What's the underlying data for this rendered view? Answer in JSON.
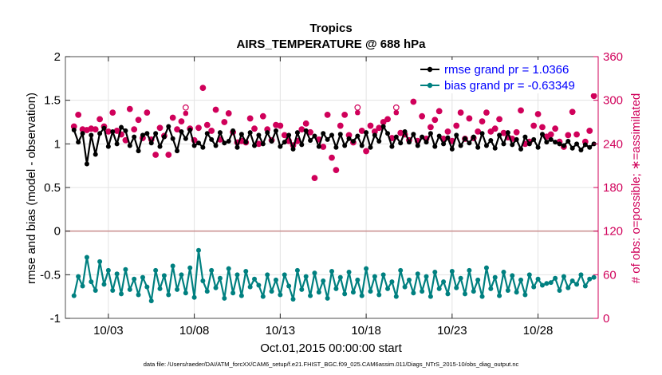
{
  "chart_data": {
    "type": "line",
    "title": "Tropics",
    "subtitle": "AIRS_TEMPERATURE @ 688 hPa",
    "xlabel": "Oct.01,2015 00:00:00 start",
    "ylabel_left": "rmse and bias (model - observation)",
    "ylabel_right": "# of obs: o=possible; ∗=assimilated",
    "footer": "data file: /Users/raeder/DAI/ATM_forcXX/CAM6_setup/f.e21.FHIST_BGC.f09_025.CAM6assim.011/Diags_NTrS_2015-10/obs_diag_output.nc",
    "xlim": [
      0.5,
      31.5
    ],
    "ylim_left": [
      -1,
      2
    ],
    "ylim_right": [
      0,
      360
    ],
    "x_ticks": [
      3,
      8,
      13,
      18,
      23,
      28
    ],
    "x_tick_labels": [
      "10/03",
      "10/08",
      "10/13",
      "10/18",
      "10/23",
      "10/28"
    ],
    "y_ticks_left": [
      -1,
      -0.5,
      0,
      0.5,
      1,
      1.5,
      2
    ],
    "y_tick_labels_left": [
      "-1",
      "-0.5",
      "0",
      "0.5",
      "1",
      "1.5",
      "2"
    ],
    "y_ticks_right": [
      0,
      60,
      120,
      180,
      240,
      300,
      360
    ],
    "y_tick_labels_right": [
      "0",
      "60",
      "120",
      "180",
      "240",
      "300",
      "360"
    ],
    "grid": true,
    "legend_position": "top-right",
    "zero_line": 0,
    "x": [
      1.0,
      1.25,
      1.5,
      1.75,
      2.0,
      2.25,
      2.5,
      2.75,
      3.0,
      3.25,
      3.5,
      3.75,
      4.0,
      4.25,
      4.5,
      4.75,
      5.0,
      5.25,
      5.5,
      5.75,
      6.0,
      6.25,
      6.5,
      6.75,
      7.0,
      7.25,
      7.5,
      7.75,
      8.0,
      8.25,
      8.5,
      8.75,
      9.0,
      9.25,
      9.5,
      9.75,
      10.0,
      10.25,
      10.5,
      10.75,
      11.0,
      11.25,
      11.5,
      11.75,
      12.0,
      12.25,
      12.5,
      12.75,
      13.0,
      13.25,
      13.5,
      13.75,
      14.0,
      14.25,
      14.5,
      14.75,
      15.0,
      15.25,
      15.5,
      15.75,
      16.0,
      16.25,
      16.5,
      16.75,
      17.0,
      17.25,
      17.5,
      17.75,
      18.0,
      18.25,
      18.5,
      18.75,
      19.0,
      19.25,
      19.5,
      19.75,
      20.0,
      20.25,
      20.5,
      20.75,
      21.0,
      21.25,
      21.5,
      21.75,
      22.0,
      22.25,
      22.5,
      22.75,
      23.0,
      23.25,
      23.5,
      23.75,
      24.0,
      24.25,
      24.5,
      24.75,
      25.0,
      25.25,
      25.5,
      25.75,
      26.0,
      26.25,
      26.5,
      26.75,
      27.0,
      27.25,
      27.5,
      27.75,
      28.0,
      28.25,
      28.5,
      28.75,
      29.0,
      29.25,
      29.5,
      29.75,
      30.0,
      30.25,
      30.5,
      30.75,
      31.0,
      31.25
    ],
    "series": [
      {
        "name": "rmse grand pr = 1.0366",
        "color": "#000000",
        "values": [
          1.16,
          1.02,
          1.12,
          0.77,
          1.1,
          0.88,
          1.12,
          1.18,
          0.97,
          1.14,
          1.0,
          1.19,
          1.15,
          0.98,
          1.08,
          0.92,
          1.1,
          1.12,
          1.01,
          1.12,
          0.97,
          1.08,
          1.2,
          1.06,
          0.92,
          1.14,
          1.06,
          1.16,
          0.98,
          1.01,
          0.96,
          1.12,
          1.05,
          0.98,
          1.13,
          1.01,
          1.03,
          1.15,
          0.96,
          1.11,
          1.02,
          1.13,
          0.98,
          1.1,
          1.0,
          1.13,
          1.03,
          1.15,
          0.97,
          1.02,
          1.1,
          0.94,
          1.13,
          0.99,
          1.15,
          1.04,
          1.09,
          0.97,
          1.12,
          1.05,
          1.1,
          0.96,
          1.11,
          0.98,
          1.06,
          1.03,
          1.09,
          0.98,
          1.13,
          0.96,
          1.1,
          1.03,
          1.2,
          1.12,
          0.97,
          1.08,
          1.01,
          1.14,
          1.02,
          1.11,
          0.98,
          1.08,
          1.02,
          1.12,
          0.97,
          1.09,
          1.0,
          1.07,
          0.94,
          1.1,
          0.98,
          1.06,
          1.01,
          1.08,
          0.96,
          1.12,
          0.98,
          1.04,
          0.95,
          1.1,
          1.0,
          1.13,
          0.99,
          1.05,
          0.94,
          1.08,
          1.0,
          1.05,
          0.96,
          1.11,
          1.02,
          1.05,
          1.02,
          1.0,
          0.98,
          1.03,
          0.95,
          1.0,
          0.93,
          0.99,
          0.96,
          1.0
        ]
      },
      {
        "name": "bias grand pr = -0.63349",
        "color": "#008080",
        "values": [
          -0.74,
          -0.52,
          -0.63,
          -0.3,
          -0.58,
          -0.68,
          -0.35,
          -0.61,
          -0.45,
          -0.68,
          -0.49,
          -0.72,
          -0.44,
          -0.67,
          -0.55,
          -0.73,
          -0.53,
          -0.64,
          -0.8,
          -0.45,
          -0.66,
          -0.51,
          -0.73,
          -0.4,
          -0.67,
          -0.5,
          -0.71,
          -0.42,
          -0.76,
          -0.22,
          -0.57,
          -0.69,
          -0.45,
          -0.65,
          -0.54,
          -0.77,
          -0.43,
          -0.71,
          -0.5,
          -0.74,
          -0.46,
          -0.64,
          -0.55,
          -0.62,
          -0.75,
          -0.5,
          -0.69,
          -0.56,
          -0.73,
          -0.5,
          -0.63,
          -0.78,
          -0.45,
          -0.67,
          -0.52,
          -0.74,
          -0.48,
          -0.7,
          -0.57,
          -0.77,
          -0.46,
          -0.66,
          -0.53,
          -0.72,
          -0.47,
          -0.7,
          -0.56,
          -0.74,
          -0.43,
          -0.69,
          -0.52,
          -0.73,
          -0.5,
          -0.66,
          -0.58,
          -0.75,
          -0.45,
          -0.64,
          -0.56,
          -0.71,
          -0.49,
          -0.69,
          -0.52,
          -0.75,
          -0.47,
          -0.66,
          -0.58,
          -0.72,
          -0.46,
          -0.65,
          -0.54,
          -0.72,
          -0.45,
          -0.69,
          -0.56,
          -0.75,
          -0.42,
          -0.66,
          -0.53,
          -0.74,
          -0.47,
          -0.68,
          -0.51,
          -0.7,
          -0.56,
          -0.73,
          -0.5,
          -0.64,
          -0.55,
          -0.62,
          -0.6,
          -0.59,
          -0.54,
          -0.68,
          -0.52,
          -0.65,
          -0.57,
          -0.61,
          -0.5,
          -0.63,
          -0.55,
          -0.53
        ]
      }
    ],
    "obs_count": [
      {
        "name": "assimilated",
        "marker": "*",
        "color": "#d0005a",
        "values": [
          264,
          280,
          260,
          259,
          261,
          260,
          274,
          264,
          257,
          283,
          258,
          253,
          245,
          288,
          260,
          273,
          248,
          283,
          246,
          225,
          262,
          251,
          225,
          276,
          260,
          271,
          282,
          261,
          245,
          262,
          317,
          266,
          258,
          287,
          246,
          270,
          282,
          256,
          242,
          244,
          242,
          275,
          261,
          240,
          278,
          260,
          245,
          266,
          265,
          252,
          244,
          238,
          244,
          260,
          268,
          256,
          193,
          246,
          236,
          280,
          221,
          204,
          265,
          280,
          252,
          242,
          283,
          258,
          230,
          265,
          257,
          262,
          270,
          274,
          248,
          283,
          255,
          253,
          245,
          298,
          244,
          278,
          247,
          263,
          273,
          285,
          247,
          257,
          244,
          265,
          283,
          247,
          275,
          248,
          257,
          271,
          283,
          257,
          261,
          274,
          255,
          249,
          247,
          256,
          286,
          240,
          243,
          265,
          281,
          263,
          250,
          253,
          261,
          243,
          236,
          252,
          284,
          253,
          319,
          243,
          258,
          306
        ]
      },
      {
        "name": "possible",
        "marker": "o",
        "color": "#d0005a",
        "values": [
          264,
          280,
          260,
          259,
          261,
          260,
          274,
          264,
          257,
          283,
          258,
          253,
          245,
          288,
          260,
          273,
          248,
          283,
          246,
          225,
          262,
          251,
          225,
          276,
          260,
          271,
          290,
          261,
          245,
          262,
          317,
          266,
          258,
          287,
          246,
          270,
          282,
          256,
          242,
          244,
          242,
          275,
          261,
          240,
          278,
          260,
          245,
          266,
          265,
          252,
          244,
          238,
          244,
          260,
          268,
          256,
          193,
          246,
          236,
          280,
          221,
          204,
          265,
          280,
          252,
          242,
          290,
          258,
          230,
          265,
          257,
          262,
          270,
          274,
          248,
          290,
          255,
          253,
          245,
          298,
          244,
          278,
          247,
          263,
          273,
          285,
          247,
          257,
          244,
          265,
          283,
          247,
          275,
          248,
          257,
          271,
          283,
          257,
          261,
          274,
          255,
          249,
          247,
          256,
          286,
          240,
          243,
          265,
          281,
          263,
          250,
          253,
          261,
          243,
          236,
          252,
          284,
          253,
          319,
          243,
          258,
          306
        ]
      }
    ]
  }
}
